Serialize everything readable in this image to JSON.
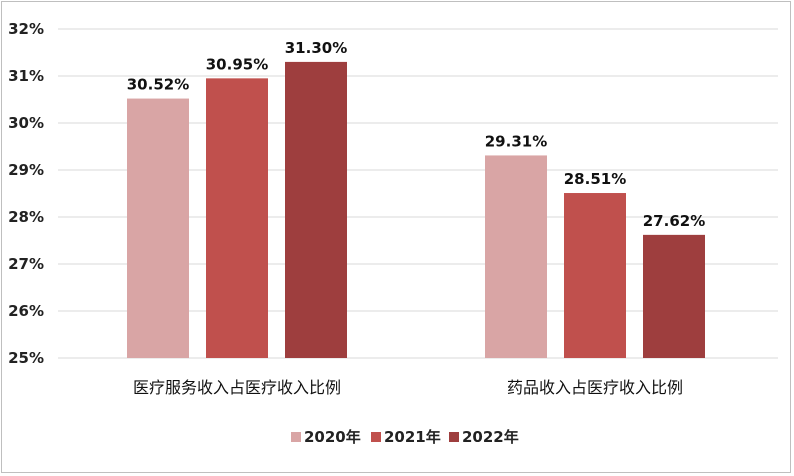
{
  "chart_data": {
    "type": "bar",
    "categories": [
      "医疗服务收入占医疗收入比例",
      "药品收入占医疗收入比例"
    ],
    "series": [
      {
        "name": "2020年",
        "values": [
          30.52,
          29.31
        ],
        "labels": [
          "30.52%",
          "29.31%"
        ],
        "color": "#d9a5a5"
      },
      {
        "name": "2021年",
        "values": [
          30.95,
          28.51
        ],
        "labels": [
          "30.95%",
          "28.51%"
        ],
        "color": "#c0504d"
      },
      {
        "name": "2022年",
        "values": [
          31.3,
          27.62
        ],
        "labels": [
          "31.30%",
          "27.62%"
        ],
        "color": "#9e3e3e"
      }
    ],
    "ylim": [
      25,
      32
    ],
    "yticks": [
      "25%",
      "26%",
      "27%",
      "28%",
      "29%",
      "30%",
      "31%",
      "32%"
    ],
    "grid": true,
    "legend": "bottom",
    "title": "",
    "xlabel": "",
    "ylabel": ""
  }
}
